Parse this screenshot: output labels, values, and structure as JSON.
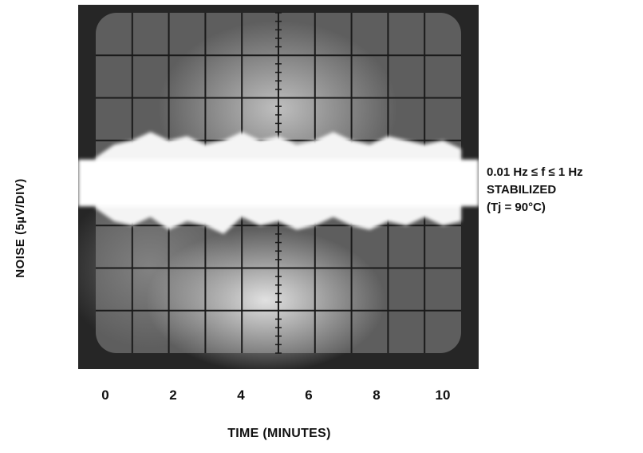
{
  "chart_data": {
    "type": "oscilloscope-trace",
    "title": "",
    "ylabel": "NOISE (5µV/DIV)",
    "xlabel": "TIME (MINUTES)",
    "x_ticks": [
      "0",
      "2",
      "4",
      "6",
      "8",
      "10"
    ],
    "xlim": [
      0,
      10
    ],
    "y_unit_per_div": 5,
    "y_divisions": 8,
    "x_divisions": 10,
    "grid": true,
    "annotation": {
      "line1": "0.01 Hz ≤ f ≤ 1 Hz",
      "line2": "STABILIZED",
      "line3": "(Tj = 90°C)"
    },
    "series": [
      {
        "x": [
          0,
          0.5,
          1,
          1.5,
          2,
          2.5,
          3,
          3.5,
          4,
          4.5,
          5,
          5.5,
          6,
          6.5,
          7,
          7.5,
          8,
          8.5,
          9,
          9.5,
          10
        ],
        "low": [
          -0.6,
          -0.9,
          -1.0,
          -0.8,
          -1.1,
          -0.9,
          -1.0,
          -1.2,
          -0.8,
          -1.0,
          -0.9,
          -1.1,
          -1.0,
          -0.8,
          -1.0,
          -1.1,
          -0.9,
          -1.0,
          -0.8,
          -1.0,
          -0.9
        ],
        "high": [
          0.6,
          0.9,
          1.0,
          1.2,
          1.0,
          1.1,
          0.9,
          1.0,
          1.2,
          1.0,
          1.1,
          0.9,
          1.0,
          1.2,
          1.0,
          0.9,
          1.1,
          1.0,
          0.9,
          1.0,
          0.8
        ]
      }
    ]
  }
}
